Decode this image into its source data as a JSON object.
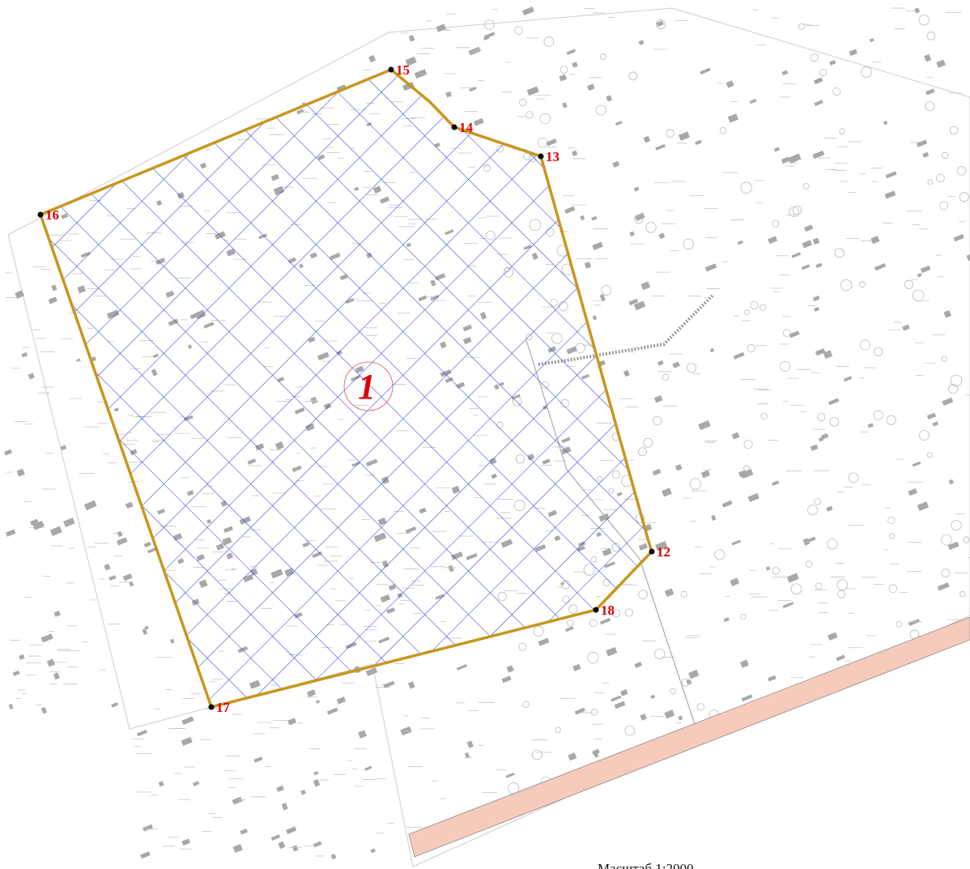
{
  "area_label": "1",
  "points": [
    {
      "label": "15"
    },
    {
      "label": "14"
    },
    {
      "label": "13"
    },
    {
      "label": "12"
    },
    {
      "label": "18"
    },
    {
      "label": "17"
    },
    {
      "label": "16"
    }
  ],
  "scale": "Масштаб 1:2000"
}
